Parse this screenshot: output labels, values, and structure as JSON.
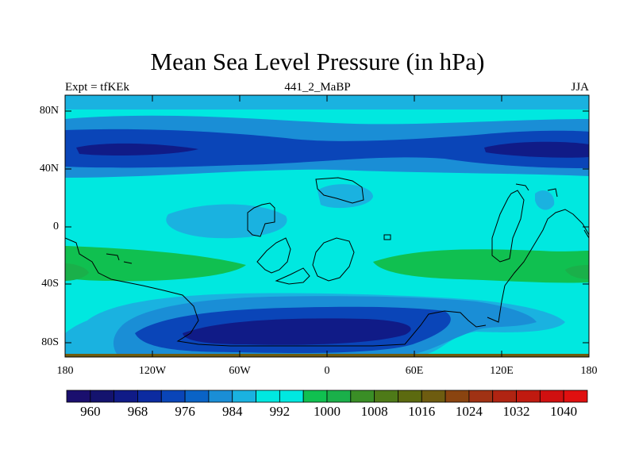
{
  "title": "Mean Sea Level Pressure (in hPa)",
  "left_label": "Expt = tfKEk",
  "center_label": "441_2_MaBP",
  "right_label": "JJA",
  "lat_ticks": [
    "80N",
    "40N",
    "0",
    "40S",
    "80S"
  ],
  "lon_ticks": [
    "180",
    "120W",
    "60W",
    "0",
    "60E",
    "120E",
    "180"
  ],
  "colorbar": {
    "labels": [
      "960",
      "968",
      "976",
      "984",
      "992",
      "1000",
      "1008",
      "1016",
      "1024",
      "1032",
      "1040"
    ],
    "colors": [
      "#1a0f6e",
      "#14136e",
      "#101b87",
      "#0c2ba0",
      "#0a45b8",
      "#0a63c6",
      "#1a8ed6",
      "#1ab2e0",
      "#00e8e0",
      "#00e8e0",
      "#10c050",
      "#1ab04a",
      "#3a8e26",
      "#4e7a18",
      "#5c6a10",
      "#6e5c10",
      "#8a4410",
      "#a03214",
      "#b02412",
      "#c01a10",
      "#d01010",
      "#e01010"
    ]
  },
  "map_fields": {
    "background": "#00e8e0",
    "bands": [
      {
        "name": "north-low-belt",
        "color": "#1a8ed6"
      },
      {
        "name": "north-low-core",
        "color": "#0a45b8"
      },
      {
        "name": "north-low-deep",
        "color": "#101b87"
      },
      {
        "name": "southern-ocean-low",
        "color": "#1a8ed6"
      },
      {
        "name": "southern-ocean-core",
        "color": "#0a45b8"
      },
      {
        "name": "southern-ocean-deep",
        "color": "#101b87"
      },
      {
        "name": "subtropical-high",
        "color": "#10c050"
      },
      {
        "name": "subtropical-high-core",
        "color": "#1ab04a"
      },
      {
        "name": "tropical-low",
        "color": "#1ab2e0"
      }
    ]
  }
}
